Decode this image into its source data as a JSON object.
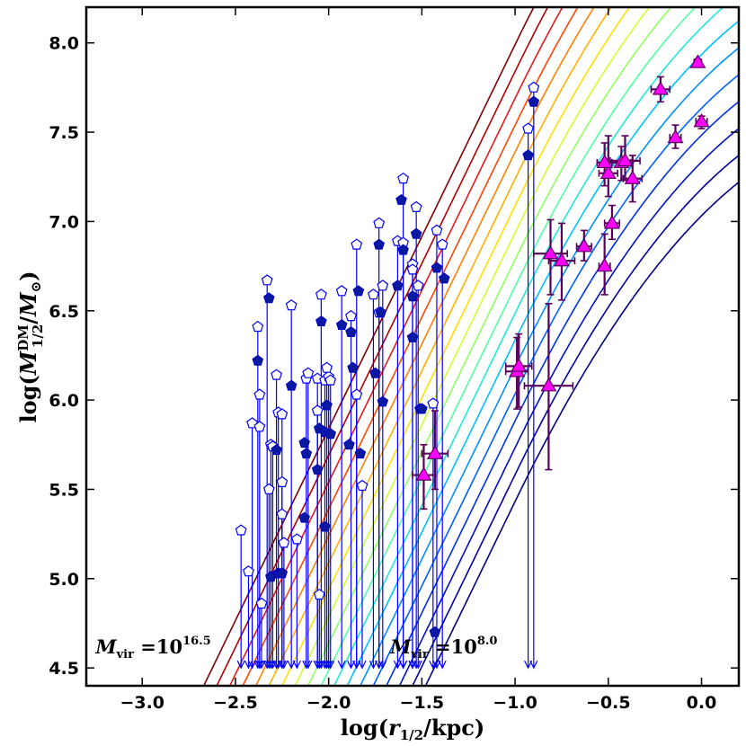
{
  "chart_data": {
    "type": "scatter",
    "title": "",
    "xlabel": "log(r_1/2/kpc)",
    "ylabel": "log(M_1/2^DM/M_⊙)",
    "xlabel_parts": {
      "pre": "log(",
      "var": "r",
      "sub": "1/2",
      "post": "/kpc)"
    },
    "ylabel_parts": {
      "pre": "log(",
      "var": "M",
      "sub": "1/2",
      "sup": "DM",
      "mid": "/",
      "var2": "M",
      "sub2": "⊙",
      "post": ")"
    },
    "xlim": [
      -3.3,
      0.2
    ],
    "ylim": [
      4.4,
      8.2
    ],
    "xticks": [
      -3.0,
      -2.5,
      -2.0,
      -1.5,
      -1.0,
      -0.5,
      0.0
    ],
    "xtick_labels": [
      "−3.0",
      "−2.5",
      "−2.0",
      "−1.5",
      "−1.0",
      "−0.5",
      "0.0"
    ],
    "yticks": [
      4.5,
      5.0,
      5.5,
      6.0,
      6.5,
      7.0,
      7.5,
      8.0
    ],
    "ytick_labels": [
      "4.5",
      "5.0",
      "5.5",
      "6.0",
      "6.5",
      "7.0",
      "7.5",
      "8.0"
    ],
    "annotations": [
      {
        "text": "M",
        "sub": "vir",
        "eq": " =10",
        "sup": "16.5",
        "x": -3.25,
        "y": 4.58
      },
      {
        "text": "M",
        "sub": "vir",
        "eq": " =10",
        "sup": "8.0",
        "x": -1.67,
        "y": 4.58
      }
    ],
    "curves": {
      "description": "Model tracks for halo virial masses from 10^16.5 (leftmost) to 10^8.0 (rightmost)",
      "colors": [
        "#7f0000",
        "#b20000",
        "#e31a1c",
        "#ff4500",
        "#ff8000",
        "#ffb000",
        "#ffe000",
        "#d0ff30",
        "#90ff60",
        "#50ffa0",
        "#20e8d8",
        "#00c0ff",
        "#0090ff",
        "#0060ff",
        "#0030e0",
        "#0010c0",
        "#0000a0",
        "#000080"
      ],
      "x_at_4_4": [
        -2.67,
        -2.6,
        -2.53,
        -2.46,
        -2.39,
        -2.32,
        -2.25,
        -2.18,
        -2.11,
        -2.04,
        -1.97,
        -1.9,
        -1.83,
        -1.76,
        -1.69,
        -1.62,
        -1.55,
        -1.48
      ],
      "slope_low": 2.15,
      "bend_at": -1.0
    },
    "series": [
      {
        "name": "filled pentagons",
        "marker": "pentagon",
        "fill": "#0a1aa0",
        "edge": "#0000c0",
        "points": [
          [
            -2.38,
            6.22
          ],
          [
            -2.32,
            6.57
          ],
          [
            -2.31,
            5.01
          ],
          [
            -2.28,
            5.72
          ],
          [
            -2.27,
            5.03
          ],
          [
            -2.25,
            5.03
          ],
          [
            -2.2,
            6.08
          ],
          [
            -2.13,
            5.34
          ],
          [
            -2.13,
            5.76
          ],
          [
            -2.12,
            5.7
          ],
          [
            -2.06,
            5.61
          ],
          [
            -2.05,
            5.84
          ],
          [
            -2.04,
            6.44
          ],
          [
            -2.02,
            5.29
          ],
          [
            -2.02,
            5.82
          ],
          [
            -2.01,
            5.97
          ],
          [
            -1.99,
            5.81
          ],
          [
            -1.93,
            6.42
          ],
          [
            -1.89,
            5.75
          ],
          [
            -1.88,
            6.38
          ],
          [
            -1.87,
            6.18
          ],
          [
            -1.84,
            6.61
          ],
          [
            -1.83,
            5.7
          ],
          [
            -1.75,
            6.15
          ],
          [
            -1.73,
            6.87
          ],
          [
            -1.72,
            6.49
          ],
          [
            -1.71,
            5.99
          ],
          [
            -1.63,
            6.64
          ],
          [
            -1.61,
            7.12
          ],
          [
            -1.6,
            6.84
          ],
          [
            -1.55,
            6.58
          ],
          [
            -1.55,
            6.35
          ],
          [
            -1.53,
            6.93
          ],
          [
            -1.51,
            5.95
          ],
          [
            -1.5,
            5.95
          ],
          [
            -1.43,
            4.7
          ],
          [
            -1.42,
            6.74
          ],
          [
            -1.38,
            6.68
          ],
          [
            -0.93,
            7.37
          ],
          [
            -0.9,
            7.67
          ]
        ]
      },
      {
        "name": "open pentagons (upper bounds)",
        "marker": "pentagon-open",
        "edge": "#0000ff",
        "arrow_to": 4.5,
        "points": [
          [
            -2.47,
            5.27
          ],
          [
            -2.43,
            5.04
          ],
          [
            -2.41,
            5.87
          ],
          [
            -2.38,
            6.41
          ],
          [
            -2.37,
            6.03
          ],
          [
            -2.37,
            5.85
          ],
          [
            -2.36,
            4.86
          ],
          [
            -2.33,
            6.67
          ],
          [
            -2.32,
            5.5
          ],
          [
            -2.31,
            5.75
          ],
          [
            -2.3,
            5.74
          ],
          [
            -2.28,
            6.14
          ],
          [
            -2.27,
            5.93
          ],
          [
            -2.25,
            5.92
          ],
          [
            -2.25,
            5.54
          ],
          [
            -2.25,
            5.36
          ],
          [
            -2.24,
            5.2
          ],
          [
            -2.2,
            6.53
          ],
          [
            -2.17,
            5.22
          ],
          [
            -2.12,
            6.12
          ],
          [
            -2.11,
            6.15
          ],
          [
            -2.06,
            6.12
          ],
          [
            -2.06,
            5.94
          ],
          [
            -2.05,
            4.91
          ],
          [
            -2.04,
            6.59
          ],
          [
            -2.02,
            6.11
          ],
          [
            -2.0,
            6.13
          ],
          [
            -2.01,
            6.18
          ],
          [
            -1.99,
            6.11
          ],
          [
            -1.93,
            6.61
          ],
          [
            -1.88,
            6.47
          ],
          [
            -1.85,
            6.87
          ],
          [
            -1.85,
            6.03
          ],
          [
            -1.82,
            5.52
          ],
          [
            -1.76,
            6.59
          ],
          [
            -1.73,
            6.99
          ],
          [
            -1.73,
            6.49
          ],
          [
            -1.71,
            6.64
          ],
          [
            -1.63,
            6.89
          ],
          [
            -1.6,
            7.24
          ],
          [
            -1.6,
            6.88
          ],
          [
            -1.55,
            6.76
          ],
          [
            -1.55,
            6.73
          ],
          [
            -1.53,
            7.08
          ],
          [
            -1.52,
            6.64
          ],
          [
            -1.44,
            5.98
          ],
          [
            -1.42,
            6.95
          ],
          [
            -1.39,
            6.87
          ],
          [
            -0.93,
            7.52
          ],
          [
            -0.9,
            7.75
          ]
        ]
      },
      {
        "name": "triangles with error bars",
        "marker": "triangle",
        "fill": "#ff00ff",
        "edge": "#5a005a",
        "points": [
          {
            "x": -0.99,
            "y": 6.16,
            "xerr": 0.06,
            "yerr_lo": 0.21,
            "yerr_hi": 0.19
          },
          {
            "x": -0.98,
            "y": 6.19,
            "xerr": 0.07,
            "yerr_lo": 0.23,
            "yerr_hi": 0.18
          },
          {
            "x": -0.82,
            "y": 6.08,
            "xerr": 0.13,
            "yerr_lo": 0.47,
            "yerr_hi": 0.46
          },
          {
            "x": -0.81,
            "y": 6.82,
            "xerr": 0.09,
            "yerr_lo": 0.23,
            "yerr_hi": 0.19
          },
          {
            "x": -0.75,
            "y": 6.78,
            "xerr": 0.07,
            "yerr_lo": 0.22,
            "yerr_hi": 0.21
          },
          {
            "x": -0.63,
            "y": 6.86,
            "xerr": 0.04,
            "yerr_lo": 0.08,
            "yerr_hi": 0.09
          },
          {
            "x": -0.52,
            "y": 6.75,
            "xerr": 0.03,
            "yerr_lo": 0.16,
            "yerr_hi": 0.18
          },
          {
            "x": -0.5,
            "y": 7.27,
            "xerr": 0.05,
            "yerr_lo": 0.13,
            "yerr_hi": 0.21
          },
          {
            "x": -0.52,
            "y": 7.33,
            "xerr": 0.04,
            "yerr_lo": 0.13,
            "yerr_hi": 0.11
          },
          {
            "x": -0.48,
            "y": 6.99,
            "xerr": 0.04,
            "yerr_lo": 0.09,
            "yerr_hi": 0.1
          },
          {
            "x": -0.43,
            "y": 7.33,
            "xerr": 0.05,
            "yerr_lo": 0.1,
            "yerr_hi": 0.09
          },
          {
            "x": -0.41,
            "y": 7.34,
            "xerr": 0.08,
            "yerr_lo": 0.11,
            "yerr_hi": 0.14
          },
          {
            "x": -0.37,
            "y": 7.24,
            "xerr": 0.05,
            "yerr_lo": 0.13,
            "yerr_hi": 0.13
          },
          {
            "x": -0.22,
            "y": 7.74,
            "xerr": 0.05,
            "yerr_lo": 0.07,
            "yerr_hi": 0.07
          },
          {
            "x": -0.14,
            "y": 7.47,
            "xerr": 0.03,
            "yerr_lo": 0.06,
            "yerr_hi": 0.07
          },
          {
            "x": -0.02,
            "y": 7.89,
            "xerr": 0.02,
            "yerr_lo": 0.02,
            "yerr_hi": 0.02
          },
          {
            "x": 0.0,
            "y": 7.56,
            "xerr": 0.03,
            "yerr_lo": 0.04,
            "yerr_hi": 0.03
          },
          {
            "x": -1.49,
            "y": 5.58,
            "xerr": 0.06,
            "yerr_lo": 0.19,
            "yerr_hi": 0.17
          },
          {
            "x": -1.43,
            "y": 5.7,
            "xerr": 0.07,
            "yerr_lo": 0.2,
            "yerr_hi": 0.24
          }
        ]
      }
    ]
  }
}
